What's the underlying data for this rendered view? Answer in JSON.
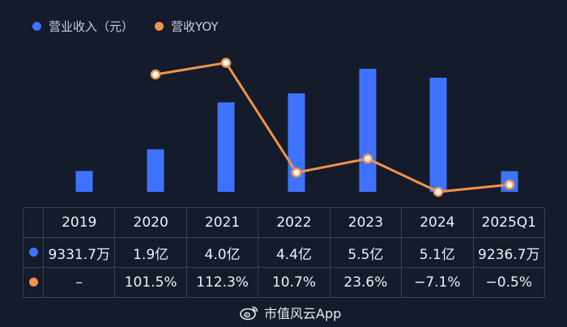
{
  "legend": {
    "revenue_label": "营业收入（元）",
    "yoy_label": "营收YOY"
  },
  "colors": {
    "revenue": "#3f73ff",
    "yoy": "#f0934a",
    "background": "#141b2b"
  },
  "table": {
    "years": [
      "2019",
      "2020",
      "2021",
      "2022",
      "2023",
      "2024",
      "2025Q1"
    ],
    "revenue_row": [
      "9331.7万",
      "1.9亿",
      "4.0亿",
      "4.4亿",
      "5.5亿",
      "5.1亿",
      "9236.7万"
    ],
    "yoy_row": [
      "–",
      "101.5%",
      "112.3%",
      "10.7%",
      "23.6%",
      "−7.1%",
      "−0.5%"
    ]
  },
  "watermark": {
    "text": "市值风云App",
    "icon": "weibo-logo-icon"
  },
  "chart_data": {
    "type": "bar",
    "categories": [
      "2019",
      "2020",
      "2021",
      "2022",
      "2023",
      "2024",
      "2025Q1"
    ],
    "series": [
      {
        "name": "营业收入（元）",
        "type": "bar",
        "unit": "亿元",
        "values": [
          0.933,
          1.9,
          4.0,
          4.4,
          5.5,
          5.1,
          0.924
        ]
      },
      {
        "name": "营收YOY",
        "type": "line",
        "unit": "%",
        "values": [
          null,
          101.5,
          112.3,
          10.7,
          23.6,
          -7.1,
          -0.5
        ]
      }
    ],
    "legend_position": "top-left",
    "grid": false
  }
}
